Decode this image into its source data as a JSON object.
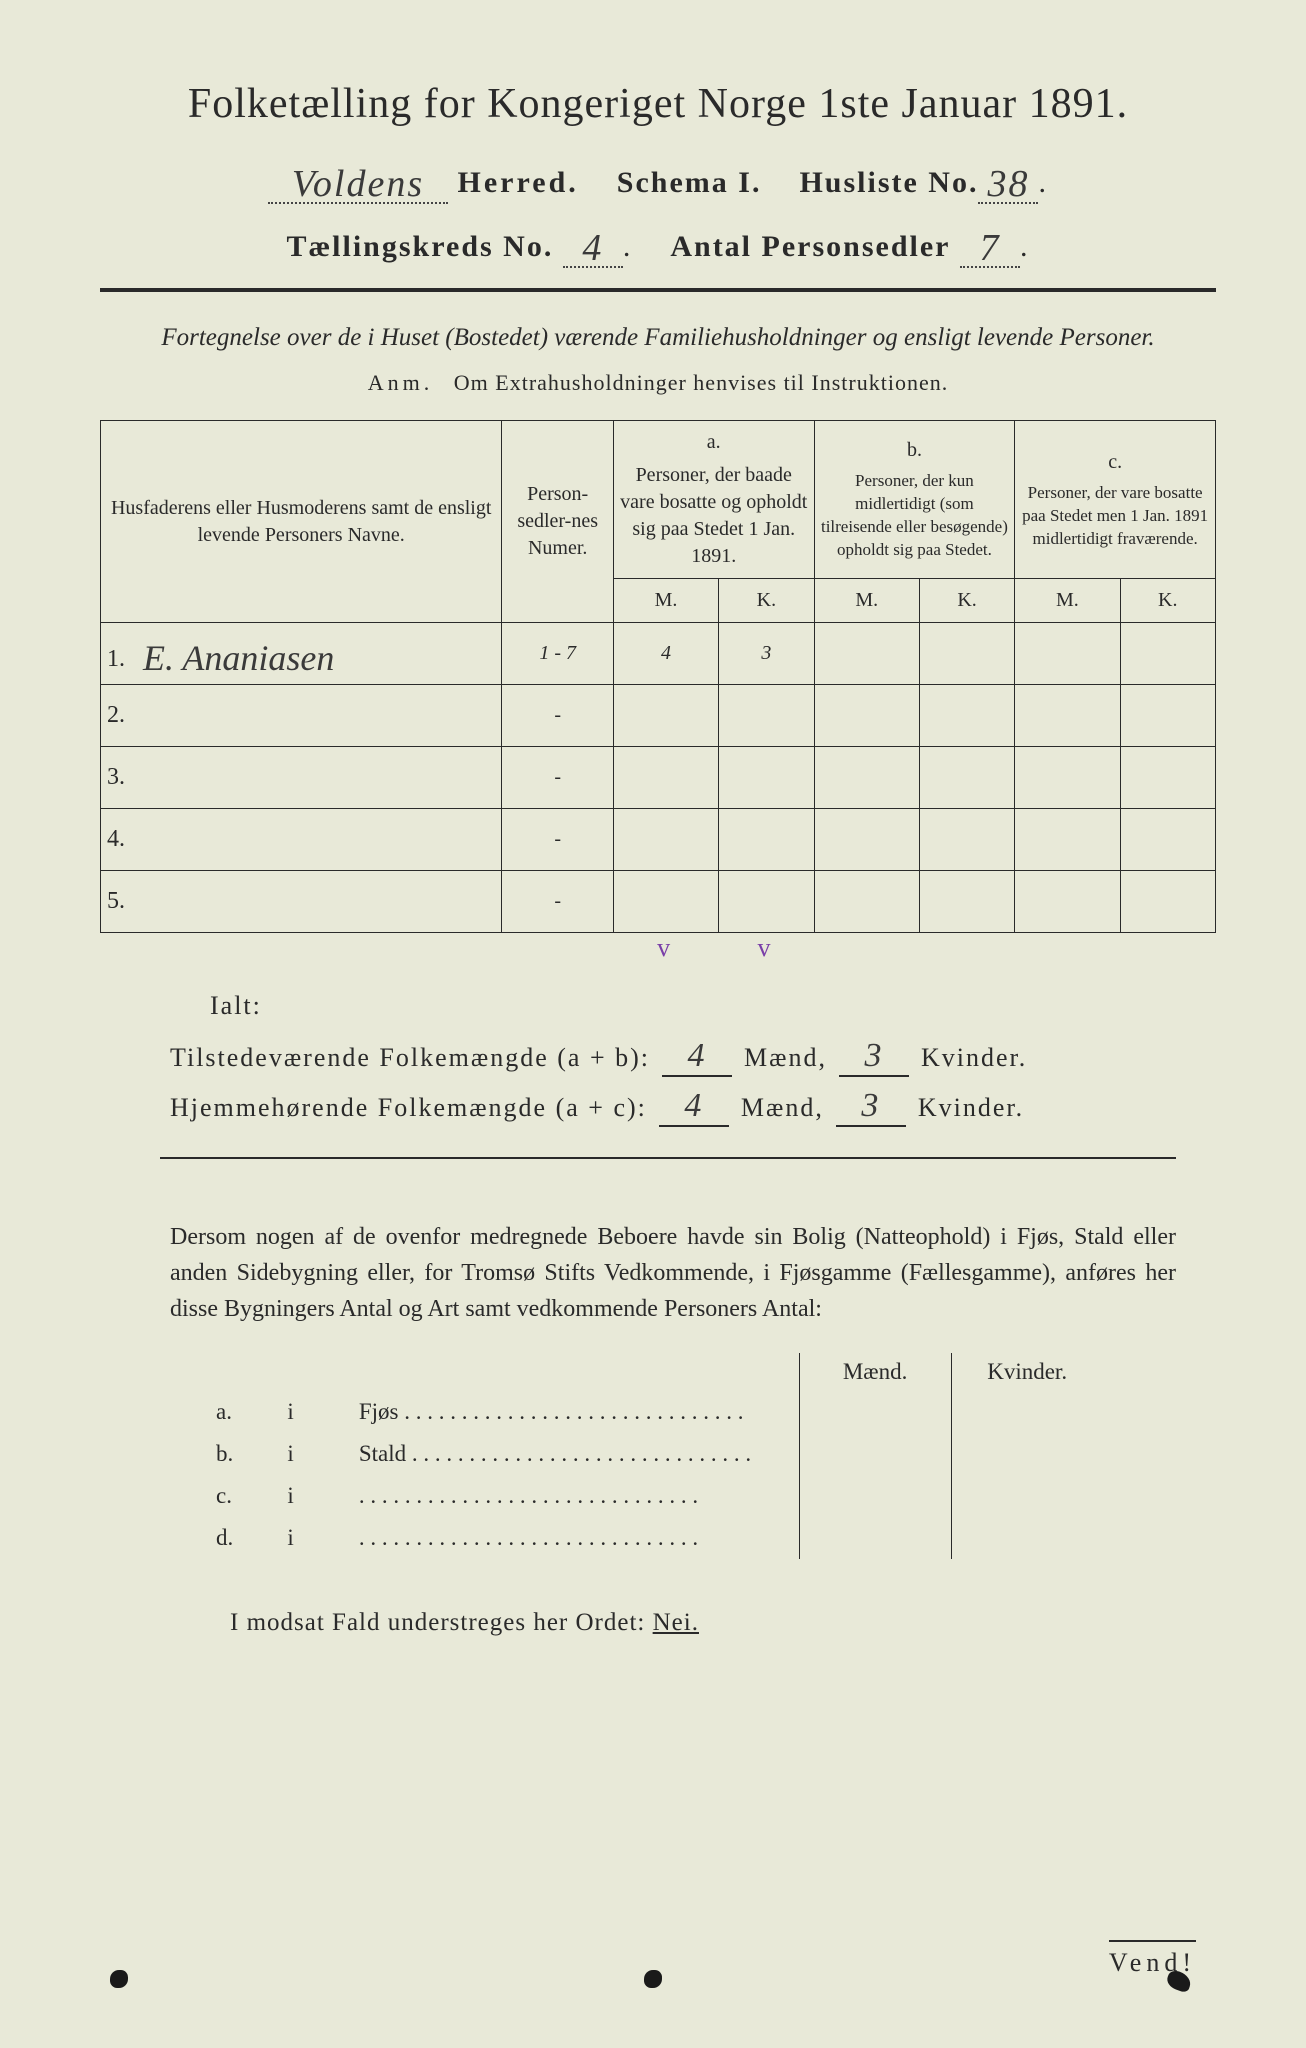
{
  "title": "Folketælling for Kongeriget Norge 1ste Januar 1891.",
  "header": {
    "herred_value": "Voldens",
    "herred_label": "Herred.",
    "schema_label": "Schema I.",
    "husliste_label": "Husliste No.",
    "husliste_value": "38",
    "kreds_label": "Tællingskreds No.",
    "kreds_value": "4",
    "antal_label": "Antal Personsedler",
    "antal_value": "7"
  },
  "subtitle": "Fortegnelse over de i Huset (Bostedet) værende Familiehusholdninger og ensligt levende Personer.",
  "anm_label": "Anm.",
  "anm_text": "Om Extrahusholdninger henvises til Instruktionen.",
  "table": {
    "col_name": "Husfaderens eller Husmoderens samt de ensligt levende Personers Navne.",
    "col_num": "Person-sedler-nes Numer.",
    "col_a_label": "a.",
    "col_a": "Personer, der baade vare bosatte og opholdt sig paa Stedet 1 Jan. 1891.",
    "col_b_label": "b.",
    "col_b": "Personer, der kun midlertidigt (som tilreisende eller besøgende) opholdt sig paa Stedet.",
    "col_c_label": "c.",
    "col_c": "Personer, der vare bosatte paa Stedet men 1 Jan. 1891 midlertidigt fraværende.",
    "mk_m": "M.",
    "mk_k": "K.",
    "rows": [
      {
        "n": "1.",
        "name": "E. Ananiasen",
        "num": "1 - 7",
        "a_m": "4",
        "a_k": "3",
        "b_m": "",
        "b_k": "",
        "c_m": "",
        "c_k": ""
      },
      {
        "n": "2.",
        "name": "",
        "num": "-",
        "a_m": "",
        "a_k": "",
        "b_m": "",
        "b_k": "",
        "c_m": "",
        "c_k": ""
      },
      {
        "n": "3.",
        "name": "",
        "num": "-",
        "a_m": "",
        "a_k": "",
        "b_m": "",
        "b_k": "",
        "c_m": "",
        "c_k": ""
      },
      {
        "n": "4.",
        "name": "",
        "num": "-",
        "a_m": "",
        "a_k": "",
        "b_m": "",
        "b_k": "",
        "c_m": "",
        "c_k": ""
      },
      {
        "n": "5.",
        "name": "",
        "num": "-",
        "a_m": "",
        "a_k": "",
        "b_m": "",
        "b_k": "",
        "c_m": "",
        "c_k": ""
      }
    ],
    "tick_m": "v",
    "tick_k": "v"
  },
  "ialt": "Ialt:",
  "totals": {
    "line1_label": "Tilstedeværende Folkemængde (a + b):",
    "line1_m": "4",
    "line1_k": "3",
    "line2_label": "Hjemmehørende Folkemængde (a + c):",
    "line2_m": "4",
    "line2_k": "3",
    "maend": "Mænd,",
    "kvinder_dot": "Kvinder.",
    "kvinder": "Kvinder."
  },
  "para": "Dersom nogen af de ovenfor medregnede Beboere havde sin Bolig (Natteophold) i Fjøs, Stald eller anden Sidebygning eller, for Tromsø Stifts Vedkommende, i Fjøsgamme (Fællesgamme), anføres her disse Bygningers Antal og Art samt vedkommende Personers Antal:",
  "subtable": {
    "head_m": "Mænd.",
    "head_k": "Kvinder.",
    "rows": [
      {
        "l": "a.",
        "i": "i",
        "t": "Fjøs"
      },
      {
        "l": "b.",
        "i": "i",
        "t": "Stald"
      },
      {
        "l": "c.",
        "i": "i",
        "t": ""
      },
      {
        "l": "d.",
        "i": "i",
        "t": ""
      }
    ]
  },
  "nei_line_pre": "I modsat Fald understreges her Ordet:",
  "nei": "Nei.",
  "vend": "Vend!",
  "colors": {
    "background": "#e8e9d8",
    "text": "#2a2a2a",
    "tick": "#7a3fa8"
  }
}
